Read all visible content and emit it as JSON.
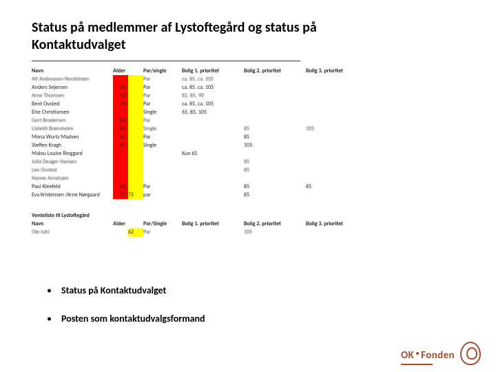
{
  "title": "Status på medlemmer af Lystoftegård og status på Kontaktudvalget",
  "table1": {
    "headers": [
      "Navn",
      "Alder",
      "",
      "Par/single",
      "Bolig 1. prioritet",
      "Bolig 2. prioritet",
      "Bolig 3. prioritet"
    ],
    "col_colors": [
      "",
      "red",
      "yellow",
      "",
      "",
      "",
      ""
    ],
    "rows": [
      {
        "blur": true,
        "cells": [
          "Alf Andreasen-Nordstrøm",
          "",
          "",
          "Par",
          "ca. 85, ca. 105",
          "",
          ""
        ]
      },
      {
        "blur": false,
        "cells": [
          "Anders Sejersen",
          "63",
          "",
          "Par",
          "ca. 85, ca. 105",
          "",
          ""
        ]
      },
      {
        "blur": true,
        "cells": [
          "Arne Thomsen",
          "72",
          "",
          "Par",
          "82, 85, 90",
          "",
          ""
        ]
      },
      {
        "blur": false,
        "cells": [
          "Bent Ousted",
          "74",
          "",
          "Par",
          "ca. 85, ca. 105",
          "",
          ""
        ]
      },
      {
        "blur": false,
        "cells": [
          "Else Christiansen",
          "",
          "",
          "Single",
          "65, 85, 105",
          "",
          ""
        ]
      },
      {
        "blur": true,
        "cells": [
          "Gert Brodersen",
          "64",
          "",
          "Par",
          "",
          "",
          ""
        ]
      },
      {
        "blur": true,
        "cells": [
          "Lisbeth Brønsholm",
          "65",
          "",
          "Single",
          "",
          "85",
          "105"
        ]
      },
      {
        "blur": false,
        "cells": [
          "Mona Wurtz Madsen",
          "65",
          "",
          "Par",
          "",
          "85",
          ""
        ]
      },
      {
        "blur": false,
        "cells": [
          "Steffen Kragh",
          "67",
          "",
          "Single",
          "",
          "105",
          ""
        ]
      },
      {
        "blur": false,
        "cells": [
          "Malou Louise Ringgard",
          "",
          "",
          "",
          "Kun 65",
          "",
          ""
        ]
      },
      {
        "blur": true,
        "cells": [
          "Julia Deager Hansen",
          "",
          "",
          "",
          "",
          "85",
          ""
        ]
      },
      {
        "blur": true,
        "cells": [
          "Lee Ousted",
          "",
          "",
          "",
          "",
          "85",
          ""
        ]
      },
      {
        "blur": true,
        "cells": [
          "Hanne Arnstrøm",
          "",
          "",
          "",
          "",
          "",
          ""
        ]
      },
      {
        "blur": false,
        "cells": [
          "Paul Kleefeld",
          "63",
          "",
          "Par",
          "",
          "85",
          "85"
        ]
      },
      {
        "blur": false,
        "cells": [
          "Eva Kristensen /Arne Nørgaard",
          "71",
          "75",
          "par",
          "",
          "85",
          ""
        ]
      }
    ]
  },
  "table2": {
    "heading_row": [
      "Venteliste til Lystoftegård",
      "",
      "",
      "",
      "",
      "",
      ""
    ],
    "headers": [
      "Navn",
      "Alder",
      "",
      "Par/Single",
      "Bolig 1. prioritet",
      "Bolig 2. prioritet",
      "Bolig 3. prioritet"
    ],
    "col_colors": [
      "",
      "",
      "yellow",
      "",
      "",
      "",
      ""
    ],
    "rows": [
      {
        "blur": true,
        "cells": [
          "Ole Juhl",
          "",
          "62",
          "Par",
          "",
          "105",
          ""
        ]
      }
    ]
  },
  "bullets": [
    "Status på Kontaktudvalget",
    "Posten som kontaktudvalgsformand"
  ],
  "footer": {
    "brand1": "OK",
    "brand2": "Fonden"
  },
  "colors": {
    "red": "#ff0000",
    "yellow": "#ffff00",
    "brand": "#a8492b"
  }
}
